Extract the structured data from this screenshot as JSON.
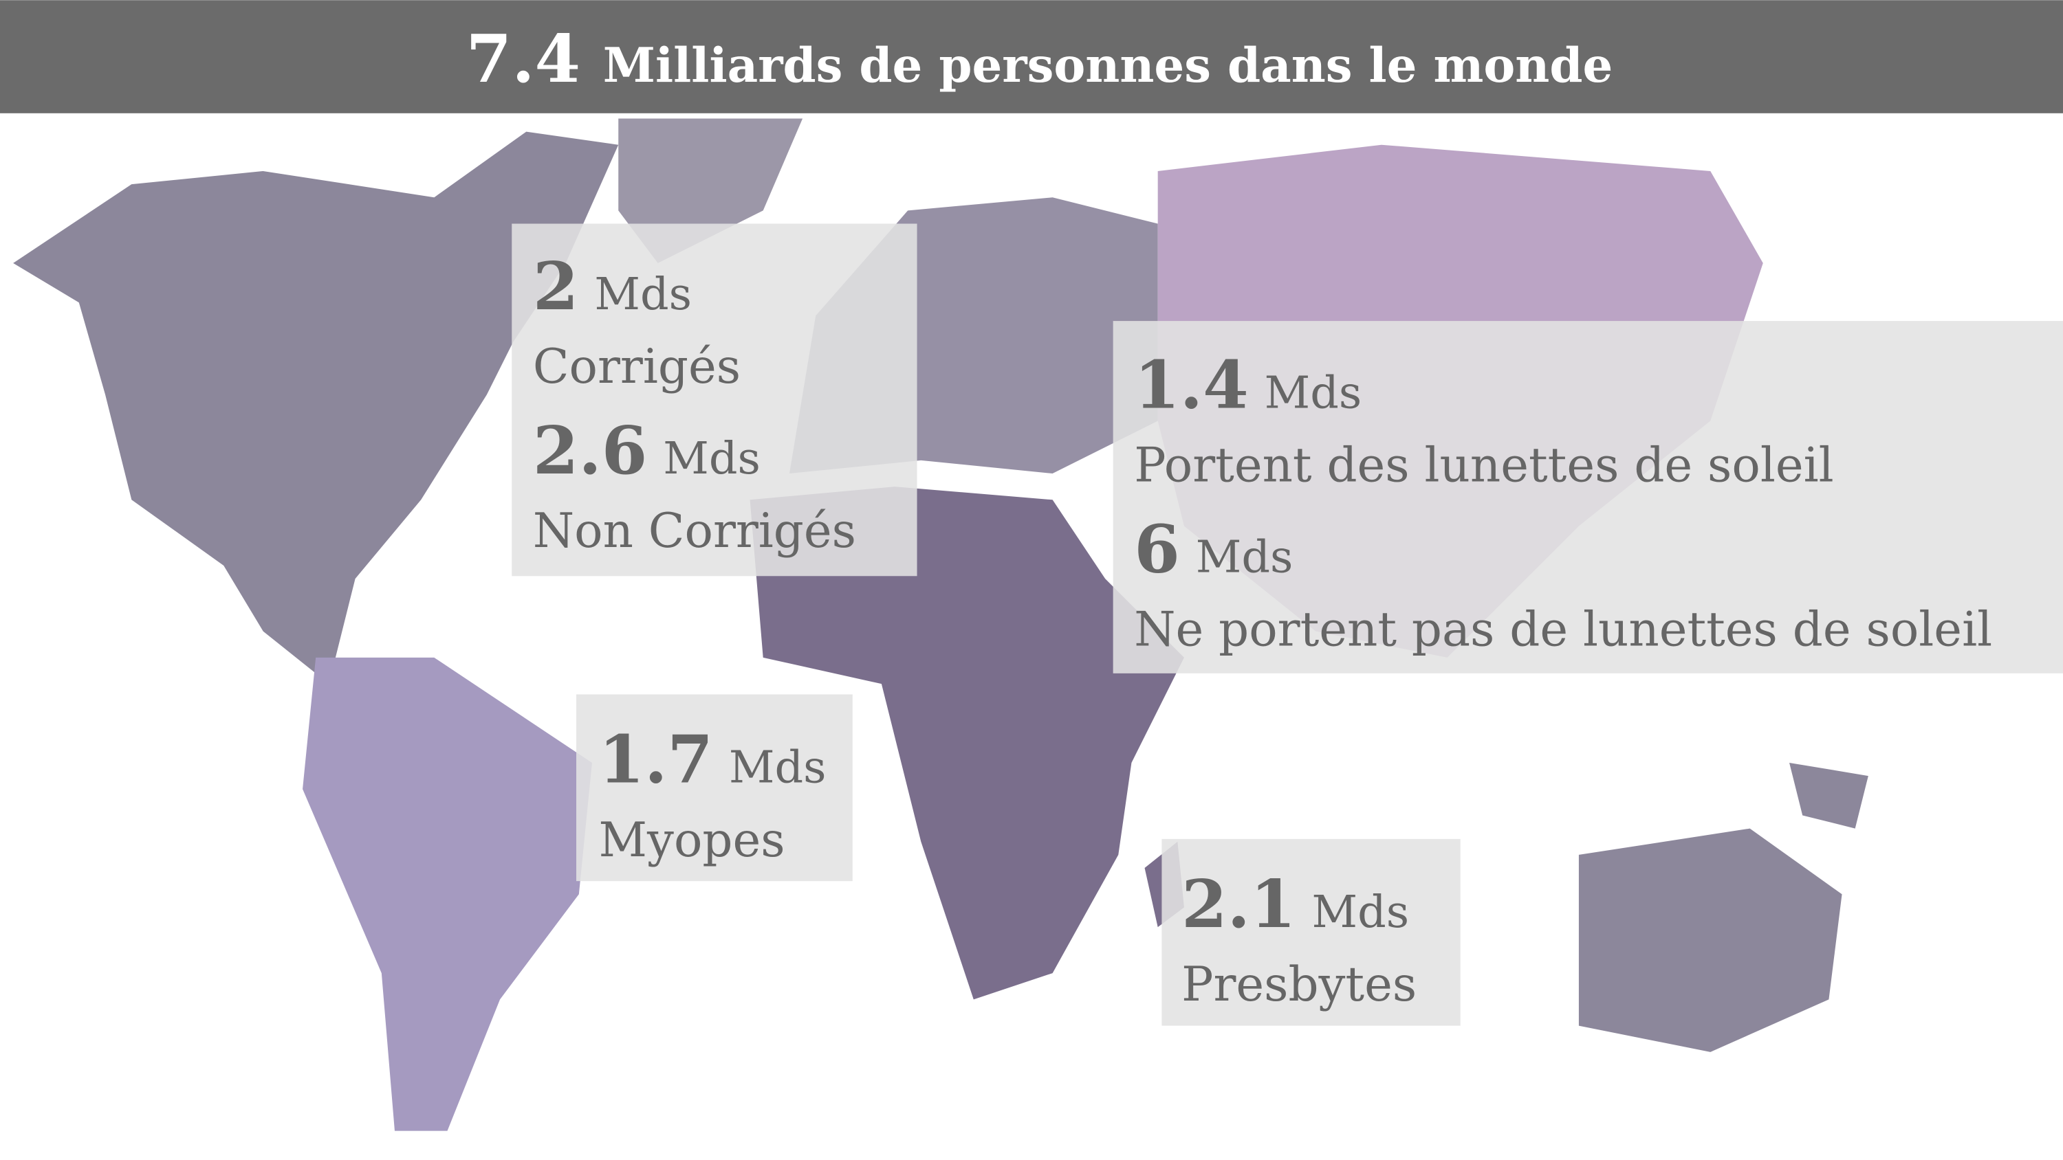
{
  "header": {
    "value": 7.4,
    "title": "Milliards de personnes dans le monde"
  },
  "boxes": [
    {
      "items": [
        {
          "value": 2,
          "unit": "Mds",
          "label": "Corrigés"
        },
        {
          "value": 2.6,
          "unit": "Mds",
          "label": "Non Corrigés"
        }
      ]
    },
    {
      "items": [
        {
          "value": 1.4,
          "unit": "Mds",
          "label": "Portent des lunettes de soleil"
        },
        {
          "value": 6,
          "unit": "Mds",
          "label": "Ne portent pas de lunettes de soleil"
        }
      ]
    },
    {
      "items": [
        {
          "value": 1.7,
          "unit": "Mds",
          "label": "Myopes"
        }
      ]
    },
    {
      "items": [
        {
          "value": 2.1,
          "unit": "Mds",
          "label": "Presbytes"
        }
      ]
    }
  ]
}
